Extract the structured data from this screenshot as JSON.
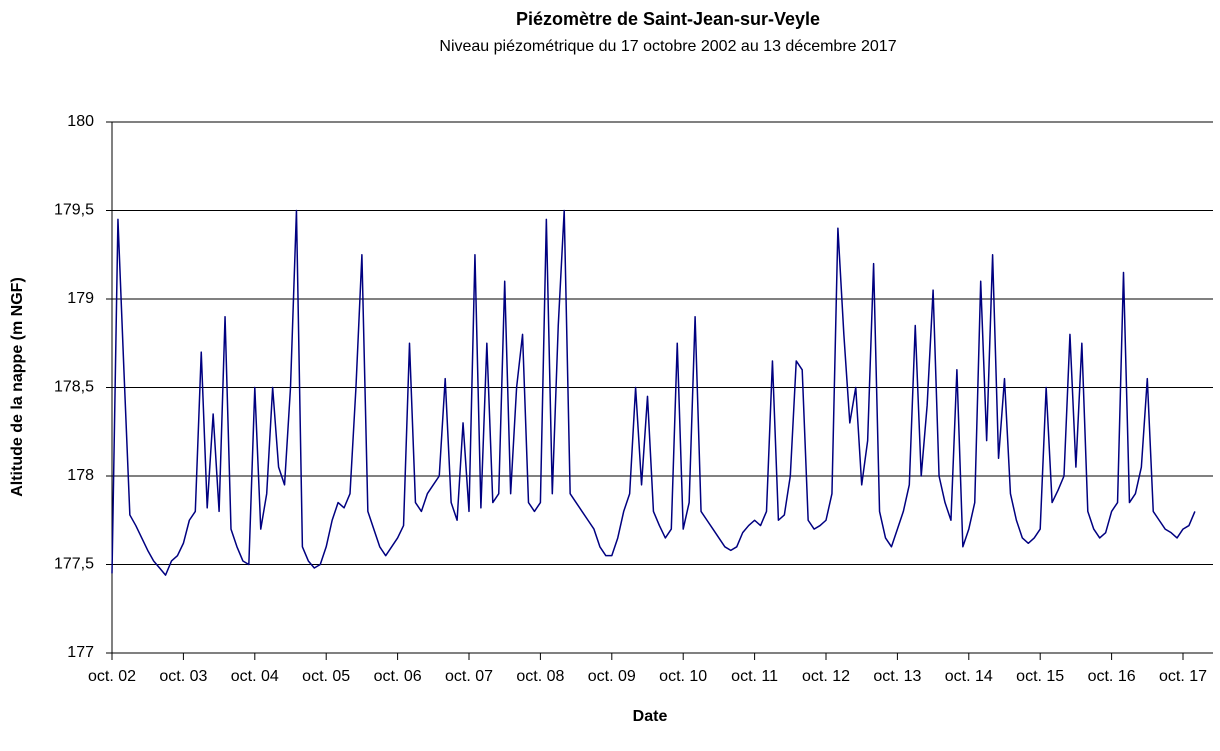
{
  "chart_data": {
    "type": "line",
    "title": "Piézomètre de Saint-Jean-sur-Veyle",
    "subtitle": "Niveau piézométrique du 17 octobre 2002 au 13 décembre 2017",
    "x_label": "Date",
    "y_label": "Altitude de la nappe (m NGF)",
    "x": [
      "2002-10",
      "2002-11",
      "2002-12",
      "2003-01",
      "2003-02",
      "2003-03",
      "2003-04",
      "2003-05",
      "2003-06",
      "2003-07",
      "2003-08",
      "2003-09",
      "2003-10",
      "2003-11",
      "2003-12",
      "2004-01",
      "2004-02",
      "2004-03",
      "2004-04",
      "2004-05",
      "2004-06",
      "2004-07",
      "2004-08",
      "2004-09",
      "2004-10",
      "2004-11",
      "2004-12",
      "2005-01",
      "2005-02",
      "2005-03",
      "2005-04",
      "2005-05",
      "2005-06",
      "2005-07",
      "2005-08",
      "2005-09",
      "2005-10",
      "2005-11",
      "2005-12",
      "2006-01",
      "2006-02",
      "2006-03",
      "2006-04",
      "2006-05",
      "2006-06",
      "2006-07",
      "2006-08",
      "2006-09",
      "2006-10",
      "2006-11",
      "2006-12",
      "2007-01",
      "2007-02",
      "2007-03",
      "2007-04",
      "2007-05",
      "2007-06",
      "2007-07",
      "2007-08",
      "2007-09",
      "2007-10",
      "2007-11",
      "2007-12",
      "2008-01",
      "2008-02",
      "2008-03",
      "2008-04",
      "2008-05",
      "2008-06",
      "2008-07",
      "2008-08",
      "2008-09",
      "2008-10",
      "2008-11",
      "2008-12",
      "2009-01",
      "2009-02",
      "2009-03",
      "2009-04",
      "2009-05",
      "2009-06",
      "2009-07",
      "2009-08",
      "2009-09",
      "2009-10",
      "2009-11",
      "2009-12",
      "2010-01",
      "2010-02",
      "2010-03",
      "2010-04",
      "2010-05",
      "2010-06",
      "2010-07",
      "2010-08",
      "2010-09",
      "2010-10",
      "2010-11",
      "2010-12",
      "2011-01",
      "2011-02",
      "2011-03",
      "2011-04",
      "2011-05",
      "2011-06",
      "2011-07",
      "2011-08",
      "2011-09",
      "2011-10",
      "2011-11",
      "2011-12",
      "2012-01",
      "2012-02",
      "2012-03",
      "2012-04",
      "2012-05",
      "2012-06",
      "2012-07",
      "2012-08",
      "2012-09",
      "2012-10",
      "2012-11",
      "2012-12",
      "2013-01",
      "2013-02",
      "2013-03",
      "2013-04",
      "2013-05",
      "2013-06",
      "2013-07",
      "2013-08",
      "2013-09",
      "2013-10",
      "2013-11",
      "2013-12",
      "2014-01",
      "2014-02",
      "2014-03",
      "2014-04",
      "2014-05",
      "2014-06",
      "2014-07",
      "2014-08",
      "2014-09",
      "2014-10",
      "2014-11",
      "2014-12",
      "2015-01",
      "2015-02",
      "2015-03",
      "2015-04",
      "2015-05",
      "2015-06",
      "2015-07",
      "2015-08",
      "2015-09",
      "2015-10",
      "2015-11",
      "2015-12",
      "2016-01",
      "2016-02",
      "2016-03",
      "2016-04",
      "2016-05",
      "2016-06",
      "2016-07",
      "2016-08",
      "2016-09",
      "2016-10",
      "2016-11",
      "2016-12",
      "2017-01",
      "2017-02",
      "2017-03",
      "2017-04",
      "2017-05",
      "2017-06",
      "2017-07",
      "2017-08",
      "2017-09",
      "2017-10",
      "2017-11",
      "2017-12"
    ],
    "series": [
      {
        "color": "#000080",
        "values": [
          177.45,
          179.45,
          178.6,
          177.78,
          177.72,
          177.65,
          177.58,
          177.52,
          177.48,
          177.44,
          177.52,
          177.55,
          177.62,
          177.75,
          177.8,
          178.7,
          177.82,
          178.35,
          177.8,
          178.9,
          177.7,
          177.6,
          177.52,
          177.5,
          178.5,
          177.7,
          177.9,
          178.5,
          178.05,
          177.95,
          178.5,
          179.5,
          177.6,
          177.52,
          177.48,
          177.5,
          177.6,
          177.75,
          177.85,
          177.82,
          177.9,
          178.5,
          179.25,
          177.8,
          177.7,
          177.6,
          177.55,
          177.6,
          177.65,
          177.72,
          178.75,
          177.85,
          177.8,
          177.9,
          177.95,
          178.0,
          178.55,
          177.85,
          177.75,
          178.3,
          177.8,
          179.25,
          177.82,
          178.75,
          177.85,
          177.9,
          179.1,
          177.9,
          178.5,
          178.8,
          177.85,
          177.8,
          177.85,
          179.45,
          177.9,
          178.85,
          179.5,
          177.9,
          177.85,
          177.8,
          177.75,
          177.7,
          177.6,
          177.55,
          177.55,
          177.65,
          177.8,
          177.9,
          178.5,
          177.95,
          178.45,
          177.8,
          177.72,
          177.65,
          177.7,
          178.75,
          177.7,
          177.85,
          178.9,
          177.8,
          177.75,
          177.7,
          177.65,
          177.6,
          177.58,
          177.6,
          177.68,
          177.72,
          177.75,
          177.72,
          177.8,
          178.65,
          177.75,
          177.78,
          178.0,
          178.65,
          178.6,
          177.75,
          177.7,
          177.72,
          177.75,
          177.9,
          179.4,
          178.8,
          178.3,
          178.5,
          177.95,
          178.2,
          179.2,
          177.8,
          177.65,
          177.6,
          177.7,
          177.8,
          177.95,
          178.85,
          178.0,
          178.4,
          179.05,
          178.0,
          177.85,
          177.75,
          178.6,
          177.6,
          177.7,
          177.85,
          179.1,
          178.2,
          179.25,
          178.1,
          178.55,
          177.9,
          177.75,
          177.65,
          177.62,
          177.65,
          177.7,
          178.5,
          177.85,
          177.92,
          178.0,
          178.8,
          178.05,
          178.75,
          177.8,
          177.7,
          177.65,
          177.68,
          177.8,
          177.85,
          179.15,
          177.85,
          177.9,
          178.05,
          178.55,
          177.8,
          177.75,
          177.7,
          177.68,
          177.65,
          177.7,
          177.72,
          177.8
        ]
      }
    ],
    "xticks": [
      {
        "value": "2002-10",
        "label": "oct. 02"
      },
      {
        "value": "2003-10",
        "label": "oct. 03"
      },
      {
        "value": "2004-10",
        "label": "oct. 04"
      },
      {
        "value": "2005-10",
        "label": "oct. 05"
      },
      {
        "value": "2006-10",
        "label": "oct. 06"
      },
      {
        "value": "2007-10",
        "label": "oct. 07"
      },
      {
        "value": "2008-10",
        "label": "oct. 08"
      },
      {
        "value": "2009-10",
        "label": "oct. 09"
      },
      {
        "value": "2010-10",
        "label": "oct. 10"
      },
      {
        "value": "2011-10",
        "label": "oct. 11"
      },
      {
        "value": "2012-10",
        "label": "oct. 12"
      },
      {
        "value": "2013-10",
        "label": "oct. 13"
      },
      {
        "value": "2014-10",
        "label": "oct. 14"
      },
      {
        "value": "2015-10",
        "label": "oct. 15"
      },
      {
        "value": "2016-10",
        "label": "oct. 16"
      },
      {
        "value": "2017-10",
        "label": "oct. 17"
      }
    ],
    "xlim": [
      "2002-10",
      "2017-10"
    ],
    "ylim": [
      177,
      180
    ],
    "yticks": [
      177,
      {
        "value": 177.5,
        "label": "177,5"
      },
      178,
      {
        "value": 178.5,
        "label": "178,5"
      },
      179,
      {
        "value": 179.5,
        "label": "179,5"
      },
      180
    ],
    "grid": true
  }
}
